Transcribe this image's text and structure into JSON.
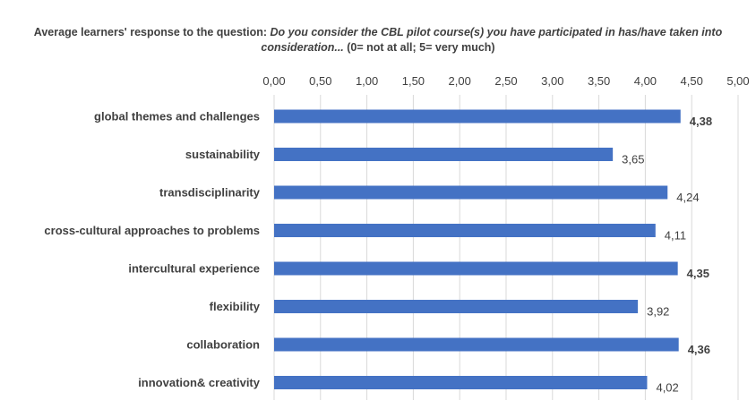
{
  "chart_data": {
    "type": "bar",
    "orientation": "horizontal",
    "title_part1": "Average learners' response to the question: ",
    "title_part2": "Do you consider the CBL pilot course(s) you have participated in has/have taken into consideration...",
    "title_part3": " (0= not at all; 5= very much)",
    "categories": [
      "global themes and challenges",
      "sustainability",
      "transdisciplinarity",
      "cross-cultural approaches to problems",
      "intercultural experience",
      "flexibility",
      "collaboration",
      "innovation& creativity"
    ],
    "values": [
      4.38,
      3.65,
      4.24,
      4.11,
      4.35,
      3.92,
      4.36,
      4.02
    ],
    "value_labels": [
      "4,38",
      "3,65",
      "4,24",
      "4,11",
      "4,35",
      "3,92",
      "4,36",
      "4,02"
    ],
    "bold_labels": [
      true,
      false,
      false,
      false,
      true,
      false,
      true,
      false
    ],
    "xlim": [
      0,
      5
    ],
    "x_ticks": [
      "0,00",
      "0,50",
      "1,00",
      "1,50",
      "2,00",
      "2,50",
      "3,00",
      "3,50",
      "4,00",
      "4,50",
      "5,00"
    ],
    "x_axis_position": "top",
    "grid": true,
    "bar_color": "#4472c4"
  }
}
